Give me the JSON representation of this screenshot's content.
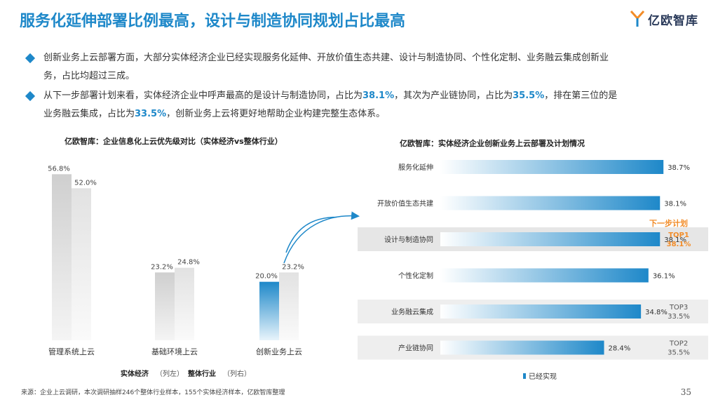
{
  "header": {
    "title": "服务化延伸部署比例最高，设计与制造协同规划占比最高",
    "logo_text": "亿欧智库"
  },
  "bullets": [
    {
      "segments": [
        {
          "text": "创新业务上云部署方面，大部分实体经济企业已经实现服务化延伸、开放价值生态共建、设计与制造协同、个性化定制、业务融云集成创新业",
          "hl": false
        }
      ],
      "line2": "务，占比均超过三成。"
    },
    {
      "segments": [
        {
          "text": "从下一步部署计划来看，实体经济企业中呼声最高的是设计与制造协同，占比为",
          "hl": false
        },
        {
          "text": "38.1%",
          "hl": true
        },
        {
          "text": "，其次为产业链协同，占比为",
          "hl": false
        },
        {
          "text": "35.5%",
          "hl": true
        },
        {
          "text": "，排在第三位的是",
          "hl": false
        }
      ],
      "line2_segments": [
        {
          "text": "业务融云集成，占比为",
          "hl": false
        },
        {
          "text": "33.5%",
          "hl": true
        },
        {
          "text": "，创新业务上云将更好地帮助企业构建完整生态体系。",
          "hl": false
        }
      ]
    }
  ],
  "left_chart": {
    "title": "亿欧智库：企业信息化上云优先级对比（实体经济vs整体行业）",
    "legend_a_bold": "实体经济",
    "legend_a_note": "（列左）",
    "legend_b_bold": "整体行业",
    "legend_b_note": "（列右）"
  },
  "right_chart": {
    "title": "亿欧智库：实体经济企业创新业务上云部署及计划情况",
    "legend": "已经实现",
    "next_plan_label": "下一步计划"
  },
  "chart_data": [
    {
      "type": "bar",
      "categories": [
        "管理系统上云",
        "基础环境上云",
        "创新业务上云"
      ],
      "series": [
        {
          "name": "实体经济",
          "values": [
            56.8,
            23.2,
            20.0
          ],
          "labels": [
            "56.8%",
            "23.2%",
            "20.0%"
          ]
        },
        {
          "name": "整体行业",
          "values": [
            52.0,
            24.8,
            23.2
          ],
          "labels": [
            "52.0%",
            "24.8%",
            "23.2%"
          ]
        }
      ],
      "ylim": [
        0,
        60
      ],
      "highlight_category": "创新业务上云",
      "colors": {
        "gray": "#dcdcdc",
        "blue": "#1e88c9"
      }
    },
    {
      "type": "bar",
      "orientation": "horizontal",
      "categories": [
        "服务化延伸",
        "开放价值生态共建",
        "设计与制造协同",
        "个性化定制",
        "业务融云集成",
        "产业链协同"
      ],
      "values": [
        38.7,
        38.1,
        38.1,
        36.1,
        34.8,
        28.4
      ],
      "labels": [
        "38.7%",
        "38.1%",
        "38.1%",
        "36.1%",
        "34.8%",
        "28.4%"
      ],
      "xlim": [
        0,
        45
      ],
      "series_name": "已经实现",
      "plan_annotations": [
        {
          "category": "设计与制造协同",
          "rank": "TOP1",
          "value": "38.1%",
          "emphasis": true
        },
        {
          "category": "业务融云集成",
          "rank": "TOP3",
          "value": "33.5%",
          "emphasis": false
        },
        {
          "category": "产业链协同",
          "rank": "TOP2",
          "value": "35.5%",
          "emphasis": false
        }
      ],
      "colors": {
        "bar": "#1e88c9",
        "top1": "#f28c28"
      }
    }
  ],
  "footer": {
    "source": "来源：企业上云调研，本次调研抽样246个整体行业样本，155个实体经济样本，亿欧智库整理",
    "page_number": "35"
  }
}
